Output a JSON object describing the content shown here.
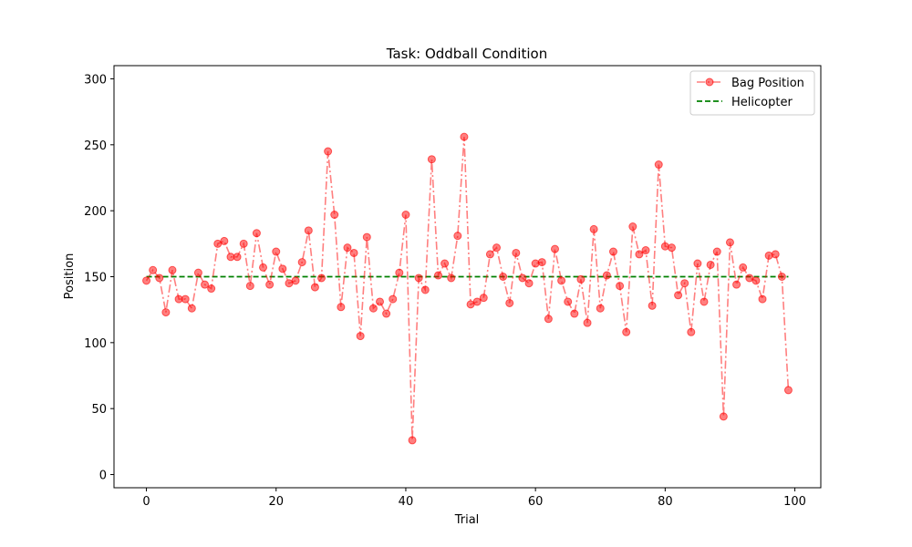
{
  "chart_data": {
    "type": "line",
    "title": "Task: Oddball Condition",
    "xlabel": "Trial",
    "ylabel": "Position",
    "xlim": [
      -5,
      104
    ],
    "ylim": [
      -10,
      310
    ],
    "xticks": [
      0,
      20,
      40,
      60,
      80,
      100
    ],
    "yticks": [
      0,
      50,
      100,
      150,
      200,
      250,
      300
    ],
    "grid": false,
    "legend_position": "top-right",
    "series": [
      {
        "name": "Bag Position",
        "color": "#ff0000",
        "line_style": "dash-dot",
        "marker": "circle",
        "x": [
          0,
          1,
          2,
          3,
          4,
          5,
          6,
          7,
          8,
          9,
          10,
          11,
          12,
          13,
          14,
          15,
          16,
          17,
          18,
          19,
          20,
          21,
          22,
          23,
          24,
          25,
          26,
          27,
          28,
          29,
          30,
          31,
          32,
          33,
          34,
          35,
          36,
          37,
          38,
          39,
          40,
          41,
          42,
          43,
          44,
          45,
          46,
          47,
          48,
          49,
          50,
          51,
          52,
          53,
          54,
          55,
          56,
          57,
          58,
          59,
          60,
          61,
          62,
          63,
          64,
          65,
          66,
          67,
          68,
          69,
          70,
          71,
          72,
          73,
          74,
          75,
          76,
          77,
          78,
          79,
          80,
          81,
          82,
          83,
          84,
          85,
          86,
          87,
          88,
          89,
          90,
          91,
          92,
          93,
          94,
          95,
          96,
          97,
          98,
          99
        ],
        "values": [
          147,
          155,
          149,
          123,
          155,
          133,
          133,
          126,
          153,
          144,
          141,
          175,
          177,
          165,
          165,
          175,
          143,
          183,
          157,
          144,
          169,
          156,
          145,
          147,
          161,
          185,
          142,
          149,
          245,
          197,
          127,
          172,
          168,
          105,
          180,
          126,
          131,
          122,
          133,
          153,
          197,
          26,
          149,
          140,
          239,
          151,
          160,
          149,
          181,
          256,
          129,
          131,
          134,
          167,
          172,
          150,
          130,
          168,
          149,
          145,
          160,
          161,
          118,
          171,
          147,
          131,
          122,
          148,
          115,
          186,
          126,
          151,
          169,
          143,
          108,
          188,
          167,
          170,
          128,
          235,
          173,
          172,
          136,
          145,
          108,
          160,
          131,
          159,
          169,
          44,
          176,
          144,
          157,
          149,
          147,
          133,
          166,
          167,
          150,
          64
        ]
      },
      {
        "name": "Helicopter",
        "color": "#008000",
        "line_style": "dashed",
        "marker": "none",
        "x": [
          0,
          99
        ],
        "values": [
          150,
          150
        ]
      }
    ]
  }
}
